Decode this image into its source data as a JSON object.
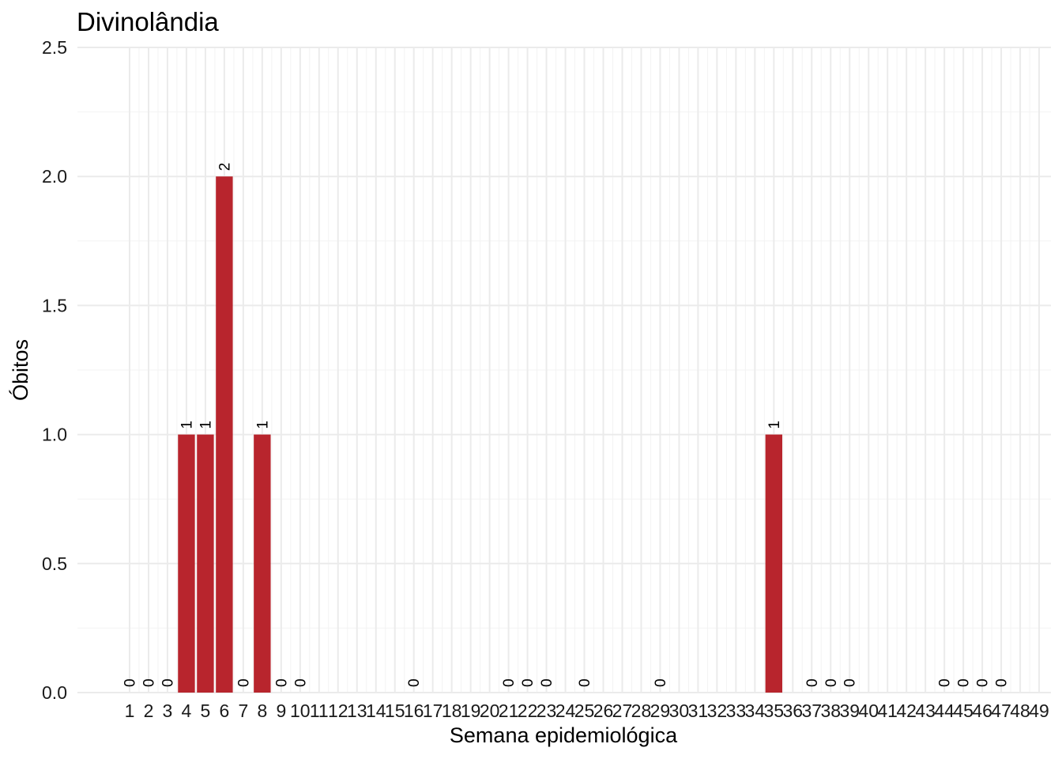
{
  "chart_data": {
    "type": "bar",
    "title": "Divinolândia",
    "xlabel": "Semana epidemiológica",
    "ylabel": "Óbitos",
    "ylim": [
      0,
      2.5
    ],
    "yticks": [
      "0.0",
      "0.5",
      "1.0",
      "1.5",
      "2.0",
      "2.5"
    ],
    "ytick_values": [
      0,
      0.5,
      1.0,
      1.5,
      2.0,
      2.5
    ],
    "categories": [
      "1",
      "2",
      "3",
      "4",
      "5",
      "6",
      "7",
      "8",
      "9",
      "10",
      "11",
      "12",
      "13",
      "14",
      "15",
      "16",
      "17",
      "18",
      "19",
      "20",
      "21",
      "22",
      "23",
      "24",
      "25",
      "26",
      "27",
      "28",
      "29",
      "30",
      "31",
      "32",
      "33",
      "34",
      "35",
      "36",
      "37",
      "38",
      "39",
      "40",
      "41",
      "42",
      "43",
      "44",
      "45",
      "46",
      "47",
      "48",
      "49"
    ],
    "values": [
      0,
      0,
      0,
      1,
      1,
      2,
      0,
      1,
      0,
      0,
      null,
      null,
      null,
      null,
      null,
      0,
      null,
      null,
      null,
      null,
      0,
      0,
      0,
      null,
      0,
      null,
      null,
      null,
      0,
      null,
      null,
      null,
      null,
      null,
      1,
      null,
      0,
      0,
      0,
      null,
      null,
      null,
      null,
      0,
      0,
      0,
      0,
      null,
      null
    ],
    "bar_color": "#B8252D",
    "grid": true,
    "legend": "none"
  }
}
